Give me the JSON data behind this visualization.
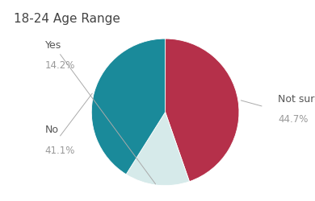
{
  "title": "18-24 Age Range",
  "slices": [
    {
      "label": "Not sure",
      "value": 44.7,
      "color": "#b5304a"
    },
    {
      "label": "Yes",
      "value": 14.2,
      "color": "#d6eaea"
    },
    {
      "label": "No",
      "value": 41.1,
      "color": "#1a8a9a"
    }
  ],
  "background_color": "#ffffff",
  "title_fontsize": 11,
  "label_fontsize": 9,
  "pct_fontsize": 8.5,
  "label_color": "#555555",
  "pct_color": "#999999",
  "startangle": 90,
  "label_positions": {
    "Not sure": [
      1.55,
      0.02
    ],
    "Yes": [
      -1.45,
      0.72
    ],
    "No": [
      -1.45,
      -0.38
    ]
  },
  "line_end_positions": {
    "Not sure": [
      1.01,
      0.02
    ],
    "Yes": [
      0.08,
      0.88
    ],
    "No": [
      0.04,
      -0.55
    ]
  }
}
